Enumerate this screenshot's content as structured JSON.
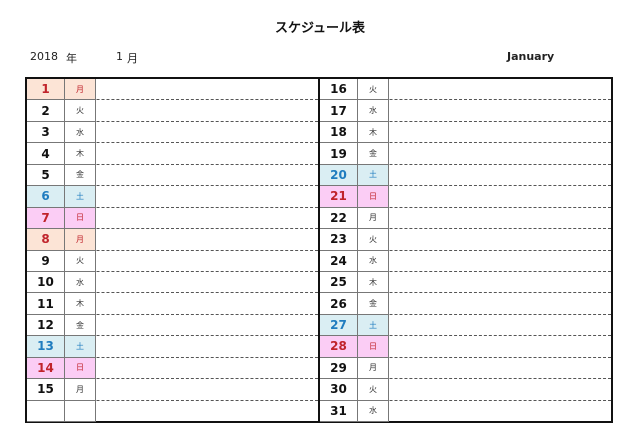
{
  "title": "スケジュール表",
  "header": {
    "year": "2018",
    "year_label": "年",
    "month": "1",
    "month_label": "月",
    "month_en": "January"
  },
  "colors": {
    "holiday_bg": "#fce4d6",
    "saturday_bg": "#daeef3",
    "sunday_bg": "#fbcdf5",
    "red_text": "#c0232b",
    "blue_text": "#1f7cbf"
  },
  "left": [
    {
      "day": "1",
      "wd": "月",
      "type": "hol"
    },
    {
      "day": "2",
      "wd": "火",
      "type": ""
    },
    {
      "day": "3",
      "wd": "水",
      "type": ""
    },
    {
      "day": "4",
      "wd": "木",
      "type": ""
    },
    {
      "day": "5",
      "wd": "金",
      "type": ""
    },
    {
      "day": "6",
      "wd": "土",
      "type": "sat"
    },
    {
      "day": "7",
      "wd": "日",
      "type": "sun"
    },
    {
      "day": "8",
      "wd": "月",
      "type": "hol"
    },
    {
      "day": "9",
      "wd": "火",
      "type": ""
    },
    {
      "day": "10",
      "wd": "水",
      "type": ""
    },
    {
      "day": "11",
      "wd": "木",
      "type": ""
    },
    {
      "day": "12",
      "wd": "金",
      "type": ""
    },
    {
      "day": "13",
      "wd": "土",
      "type": "sat"
    },
    {
      "day": "14",
      "wd": "日",
      "type": "sun"
    },
    {
      "day": "15",
      "wd": "月",
      "type": ""
    },
    {
      "day": "",
      "wd": "",
      "type": ""
    }
  ],
  "right": [
    {
      "day": "16",
      "wd": "火",
      "type": ""
    },
    {
      "day": "17",
      "wd": "水",
      "type": ""
    },
    {
      "day": "18",
      "wd": "木",
      "type": ""
    },
    {
      "day": "19",
      "wd": "金",
      "type": ""
    },
    {
      "day": "20",
      "wd": "土",
      "type": "sat"
    },
    {
      "day": "21",
      "wd": "日",
      "type": "sun"
    },
    {
      "day": "22",
      "wd": "月",
      "type": ""
    },
    {
      "day": "23",
      "wd": "火",
      "type": ""
    },
    {
      "day": "24",
      "wd": "水",
      "type": ""
    },
    {
      "day": "25",
      "wd": "木",
      "type": ""
    },
    {
      "day": "26",
      "wd": "金",
      "type": ""
    },
    {
      "day": "27",
      "wd": "土",
      "type": "sat"
    },
    {
      "day": "28",
      "wd": "日",
      "type": "sun"
    },
    {
      "day": "29",
      "wd": "月",
      "type": ""
    },
    {
      "day": "30",
      "wd": "火",
      "type": ""
    },
    {
      "day": "31",
      "wd": "水",
      "type": ""
    }
  ]
}
